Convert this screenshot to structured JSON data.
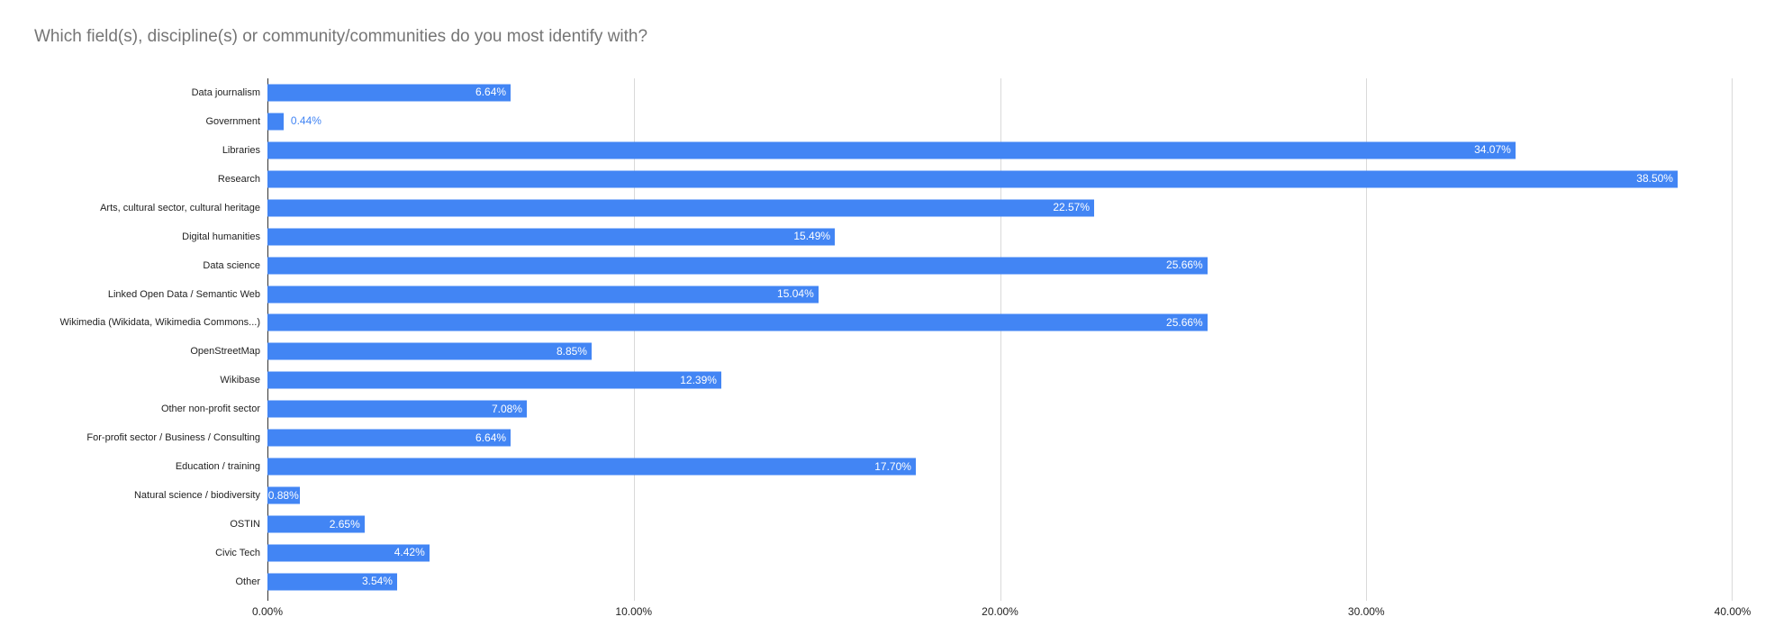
{
  "colors": {
    "background": "#ffffff",
    "bar": "#4285f4",
    "title_text": "#757575",
    "category_label": "#222222",
    "tick_label": "#222222",
    "gridline": "#d9d9d9",
    "axis_line": "#333333",
    "value_label_inside": "#ffffff",
    "value_label_outside": "#4285f4"
  },
  "chart_data": {
    "type": "bar",
    "orientation": "horizontal",
    "title": "Which field(s), discipline(s) or community/communities do you most identify with?",
    "categories": [
      "Data journalism",
      "Government",
      "Libraries",
      "Research",
      "Arts, cultural sector, cultural heritage",
      "Digital humanities",
      "Data science",
      "Linked Open Data / Semantic Web",
      "Wikimedia (Wikidata, Wikimedia Commons...)",
      "OpenStreetMap",
      "Wikibase",
      "Other non-profit sector",
      "For-profit sector / Business / Consulting",
      "Education / training",
      "Natural science / biodiversity",
      "OSTIN",
      "Civic Tech",
      "Other"
    ],
    "values": [
      6.64,
      0.44,
      34.07,
      38.5,
      22.57,
      15.49,
      25.66,
      15.04,
      25.66,
      8.85,
      12.39,
      7.08,
      6.64,
      17.7,
      0.88,
      2.65,
      4.42,
      3.54
    ],
    "value_labels": [
      "6.64%",
      "0.44%",
      "34.07%",
      "38.50%",
      "22.57%",
      "15.49%",
      "25.66%",
      "15.04%",
      "25.66%",
      "8.85%",
      "12.39%",
      "7.08%",
      "6.64%",
      "17.70%",
      "0.88%",
      "2.65%",
      "4.42%",
      "3.54%"
    ],
    "xlabel": "",
    "ylabel": "",
    "xlim": [
      0,
      40
    ],
    "x_tick_values": [
      0,
      10,
      20,
      30,
      40
    ],
    "x_tick_labels": [
      "0.00%",
      "10.00%",
      "20.00%",
      "30.00%",
      "40.00%"
    ],
    "grid": true,
    "legend": "none"
  }
}
